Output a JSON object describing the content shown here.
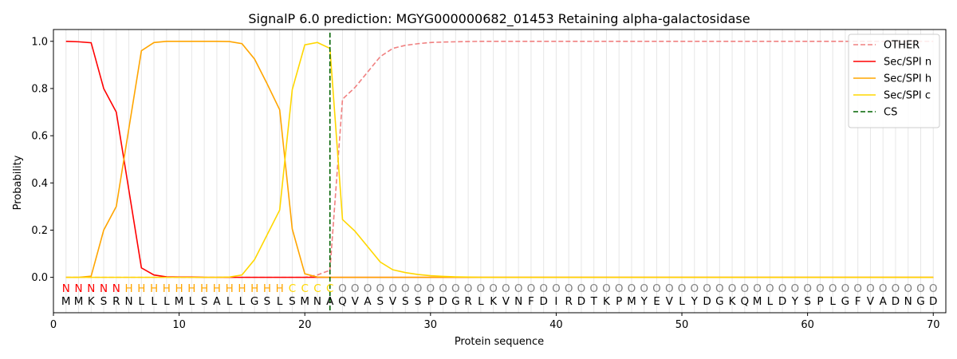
{
  "chart_data": {
    "type": "line",
    "title": "SignalP 6.0 prediction: MGYG000000682_01453 Retaining alpha-galactosidase",
    "xlabel": "Protein sequence",
    "ylabel": "Probability",
    "xlim": [
      0,
      71
    ],
    "ylim": [
      -0.15,
      1.05
    ],
    "x_ticks": [
      0,
      10,
      20,
      30,
      40,
      50,
      60,
      70
    ],
    "y_ticks": [
      0.0,
      0.2,
      0.4,
      0.6,
      0.8,
      1.0
    ],
    "x_tick_labels": [
      "0",
      "10",
      "20",
      "30",
      "40",
      "50",
      "60",
      "70"
    ],
    "y_tick_labels": [
      "0.0",
      "0.2",
      "0.4",
      "0.6",
      "0.8",
      "1.0"
    ],
    "grid": "vertical lines at each residue",
    "legend_position": "top-right",
    "sequence": [
      "M",
      "M",
      "K",
      "S",
      "R",
      "N",
      "L",
      "L",
      "L",
      "M",
      "L",
      "S",
      "A",
      "L",
      "L",
      "G",
      "S",
      "L",
      "S",
      "M",
      "N",
      "A",
      "Q",
      "V",
      "A",
      "S",
      "V",
      "S",
      "S",
      "P",
      "D",
      "G",
      "R",
      "L",
      "K",
      "V",
      "N",
      "F",
      "D",
      "I",
      "R",
      "D",
      "T",
      "K",
      "P",
      "M",
      "Y",
      "E",
      "V",
      "L",
      "Y",
      "D",
      "G",
      "K",
      "Q",
      "M",
      "L",
      "D",
      "Y",
      "S",
      "P",
      "L",
      "G",
      "F",
      "V",
      "A",
      "D",
      "N",
      "G",
      "D"
    ],
    "labels": [
      "N",
      "N",
      "N",
      "N",
      "N",
      "H",
      "H",
      "H",
      "H",
      "H",
      "H",
      "H",
      "H",
      "H",
      "H",
      "H",
      "H",
      "H",
      "C",
      "C",
      "C",
      "C",
      "O",
      "O",
      "O",
      "O",
      "O",
      "O",
      "O",
      "O",
      "O",
      "O",
      "O",
      "O",
      "O",
      "O",
      "O",
      "O",
      "O",
      "O",
      "O",
      "O",
      "O",
      "O",
      "O",
      "O",
      "O",
      "O",
      "O",
      "O",
      "O",
      "O",
      "O",
      "O",
      "O",
      "O",
      "O",
      "O",
      "O",
      "O",
      "O",
      "O",
      "O",
      "O",
      "O",
      "O",
      "O",
      "O",
      "O",
      "O"
    ],
    "label_colors": {
      "N": "#ff0000",
      "H": "#ffa500",
      "C": "#ffd700",
      "O": "#808080"
    },
    "series": [
      {
        "name": "OTHER",
        "color": "#f08080",
        "dash": "dashed",
        "values": [
          0.0,
          0.0,
          0.0,
          0.0,
          0.0,
          0.0,
          0.0,
          0.0,
          0.0,
          0.0,
          0.0,
          0.0,
          0.0,
          0.0,
          0.0,
          0.0,
          0.0,
          0.0,
          0.0,
          0.0,
          0.01,
          0.03,
          0.755,
          0.805,
          0.87,
          0.935,
          0.97,
          0.983,
          0.99,
          0.995,
          0.997,
          0.998,
          0.999,
          1.0,
          1.0,
          1.0,
          1.0,
          1.0,
          1.0,
          1.0,
          1.0,
          1.0,
          1.0,
          1.0,
          1.0,
          1.0,
          1.0,
          1.0,
          1.0,
          1.0,
          1.0,
          1.0,
          1.0,
          1.0,
          1.0,
          1.0,
          1.0,
          1.0,
          1.0,
          1.0,
          1.0,
          1.0,
          1.0,
          1.0,
          1.0,
          1.0,
          1.0,
          1.0,
          1.0,
          1.0
        ]
      },
      {
        "name": "Sec/SPI n",
        "color": "#ff0000",
        "dash": "solid",
        "values": [
          1.0,
          0.998,
          0.994,
          0.8,
          0.7,
          0.37,
          0.04,
          0.01,
          0.002,
          0.001,
          0.001,
          0.0,
          0.0,
          0.0,
          0.0,
          0.0,
          0.0,
          0.0,
          0.0,
          0.0,
          0.0,
          0.0,
          0.0,
          0.0,
          0.0,
          0.0,
          0.0,
          0.0,
          0.0,
          0.0,
          0.0,
          0.0,
          0.0,
          0.0,
          0.0,
          0.0,
          0.0,
          0.0,
          0.0,
          0.0,
          0.0,
          0.0,
          0.0,
          0.0,
          0.0,
          0.0,
          0.0,
          0.0,
          0.0,
          0.0,
          0.0,
          0.0,
          0.0,
          0.0,
          0.0,
          0.0,
          0.0,
          0.0,
          0.0,
          0.0,
          0.0,
          0.0,
          0.0,
          0.0,
          0.0,
          0.0,
          0.0,
          0.0,
          0.0,
          0.0
        ]
      },
      {
        "name": "Sec/SPI h",
        "color": "#ffa500",
        "dash": "solid",
        "values": [
          0.0,
          0.0,
          0.005,
          0.2,
          0.3,
          0.63,
          0.96,
          0.995,
          1.0,
          1.0,
          1.0,
          1.0,
          1.0,
          0.999,
          0.99,
          0.925,
          0.82,
          0.71,
          0.205,
          0.015,
          0.001,
          0.0,
          0.0,
          0.0,
          0.0,
          0.0,
          0.0,
          0.0,
          0.0,
          0.0,
          0.0,
          0.0,
          0.0,
          0.0,
          0.0,
          0.0,
          0.0,
          0.0,
          0.0,
          0.0,
          0.0,
          0.0,
          0.0,
          0.0,
          0.0,
          0.0,
          0.0,
          0.0,
          0.0,
          0.0,
          0.0,
          0.0,
          0.0,
          0.0,
          0.0,
          0.0,
          0.0,
          0.0,
          0.0,
          0.0,
          0.0,
          0.0,
          0.0,
          0.0,
          0.0,
          0.0,
          0.0,
          0.0,
          0.0,
          0.0
        ]
      },
      {
        "name": "Sec/SPI c",
        "color": "#ffd700",
        "dash": "solid",
        "values": [
          0.0,
          0.0,
          0.0,
          0.0,
          0.0,
          0.0,
          0.0,
          0.0,
          0.0,
          0.0,
          0.0,
          0.0,
          0.0,
          0.001,
          0.01,
          0.075,
          0.18,
          0.285,
          0.795,
          0.985,
          0.995,
          0.97,
          0.245,
          0.195,
          0.13,
          0.065,
          0.032,
          0.02,
          0.012,
          0.007,
          0.004,
          0.002,
          0.001,
          0.0,
          0.0,
          0.0,
          0.0,
          0.0,
          0.0,
          0.0,
          0.0,
          0.0,
          0.0,
          0.0,
          0.0,
          0.0,
          0.0,
          0.0,
          0.0,
          0.0,
          0.0,
          0.0,
          0.0,
          0.0,
          0.0,
          0.0,
          0.0,
          0.0,
          0.0,
          0.0,
          0.0,
          0.0,
          0.0,
          0.0,
          0.0,
          0.0,
          0.0,
          0.0,
          0.0,
          0.0
        ]
      }
    ],
    "cs": {
      "name": "CS",
      "x": 22,
      "color": "#006400",
      "dash": "dashed"
    }
  }
}
